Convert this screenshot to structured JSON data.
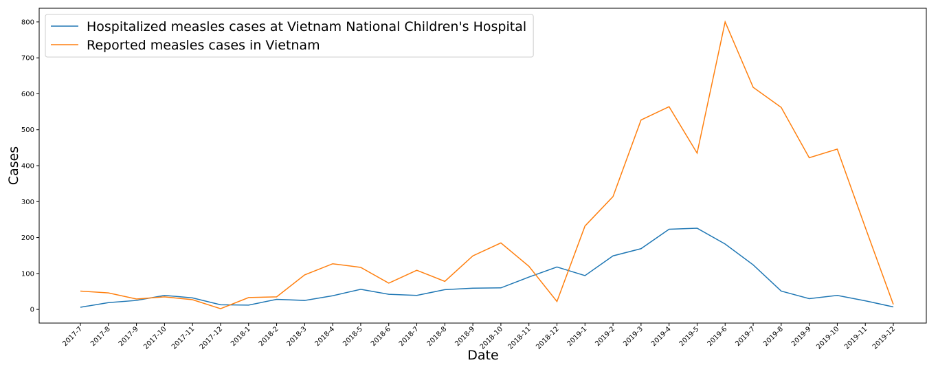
{
  "chart_data": {
    "type": "line",
    "x_label": "Date",
    "y_label": "Cases",
    "categories": [
      "2017-7",
      "2017-8",
      "2017-9",
      "2017-10",
      "2017-11",
      "2017-12",
      "2018-1",
      "2018-2",
      "2018-3",
      "2018-4",
      "2018-5",
      "2018-6",
      "2018-7",
      "2018-8",
      "2018-9",
      "2018-10",
      "2018-11",
      "2018-12",
      "2019-1",
      "2019-2",
      "2019-3",
      "2019-4",
      "2019-5",
      "2019-6",
      "2019-7",
      "2019-8",
      "2019-9",
      "2019-10",
      "2019-11",
      "2019-12"
    ],
    "series": [
      {
        "name": "Hospitalized measles cases at Vietnam National Children's Hospital",
        "color": "#1f77b4",
        "values": [
          6,
          19,
          25,
          39,
          32,
          13,
          12,
          28,
          25,
          38,
          56,
          42,
          39,
          55,
          59,
          60,
          90,
          118,
          94,
          149,
          169,
          223,
          226,
          182,
          124,
          51,
          30,
          39,
          24,
          7
        ]
      },
      {
        "name": "Reported measles cases in Vietnam",
        "color": "#ff7f0e",
        "values": [
          51,
          46,
          29,
          35,
          27,
          2,
          33,
          35,
          96,
          127,
          117,
          73,
          109,
          78,
          149,
          185,
          120,
          22,
          232,
          314,
          527,
          564,
          435,
          800,
          618,
          562,
          422,
          446,
          228,
          14
        ]
      }
    ],
    "ylim": [
      -38,
      838
    ],
    "yticks": [
      0,
      100,
      200,
      300,
      400,
      500,
      600,
      700,
      800
    ],
    "legend": "upper left",
    "grid": false
  }
}
